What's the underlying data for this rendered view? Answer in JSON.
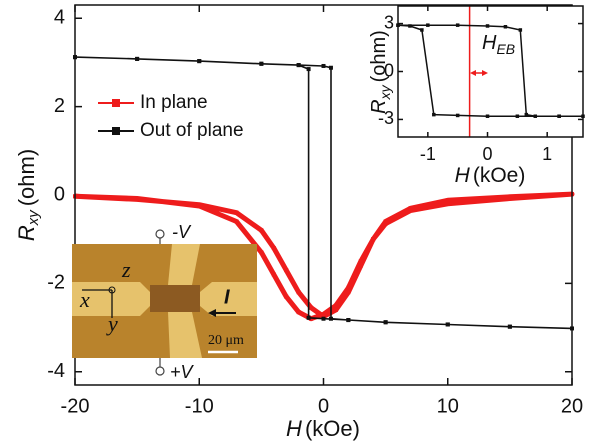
{
  "chart_data": [
    {
      "type": "line",
      "y_label": {
        "symbol": "R",
        "subscript": "xy",
        "unit": "(ohm)"
      },
      "x_label": {
        "symbol": "H",
        "unit": "(kOe)"
      },
      "xlim": [
        -20,
        20
      ],
      "xticks": [
        -20,
        -10,
        0,
        10,
        20
      ],
      "ylim": [
        -4.3,
        4.3
      ],
      "yticks": [
        -4,
        -2,
        0,
        2,
        4
      ],
      "legend": "upper left",
      "series": [
        {
          "name": "In plane",
          "color": "#ee1c1c",
          "marker": "square",
          "x": [
            -20,
            -15,
            -10,
            -7,
            -5,
            -4,
            -3,
            -2,
            -1,
            0,
            1,
            2,
            3,
            4,
            5,
            7,
            10,
            15,
            20,
            15,
            10,
            7,
            5,
            4,
            3,
            2,
            1,
            0,
            -1,
            -2,
            -3,
            -4,
            -5,
            -7,
            -10,
            -15,
            -20
          ],
          "values": [
            -0.03,
            -0.08,
            -0.25,
            -0.6,
            -1.3,
            -1.8,
            -2.3,
            -2.65,
            -2.8,
            -2.7,
            -2.5,
            -2.1,
            -1.5,
            -1.0,
            -0.65,
            -0.35,
            -0.2,
            -0.08,
            0.02,
            -0.04,
            -0.12,
            -0.3,
            -0.6,
            -1.0,
            -1.6,
            -2.2,
            -2.6,
            -2.75,
            -2.55,
            -2.2,
            -1.7,
            -1.2,
            -0.8,
            -0.4,
            -0.22,
            -0.1,
            -0.03
          ]
        },
        {
          "name": "Out of plane",
          "color": "#111111",
          "marker": "square",
          "x": [
            -20,
            -15,
            -10,
            -5,
            -2,
            0,
            0.6,
            0.6,
            2,
            5,
            10,
            15,
            20,
            15,
            10,
            5,
            2,
            0,
            -1.2,
            -1.2,
            -2,
            -5,
            -10,
            -15,
            -20
          ],
          "values": [
            3.12,
            3.08,
            3.03,
            2.97,
            2.94,
            2.92,
            2.88,
            -2.8,
            -2.83,
            -2.88,
            -2.93,
            -2.98,
            -3.02,
            -2.98,
            -2.93,
            -2.88,
            -2.83,
            -2.8,
            -2.78,
            2.85,
            2.94,
            2.97,
            3.03,
            3.08,
            3.12
          ]
        }
      ]
    },
    {
      "type": "line",
      "y_label": {
        "symbol": "R",
        "subscript": "xy",
        "unit": "(ohm)"
      },
      "x_label": {
        "symbol": "H",
        "unit": "(kOe)"
      },
      "xlim": [
        -1.5,
        1.6
      ],
      "xticks": [
        -1,
        0,
        1
      ],
      "ylim": [
        -4.1,
        4.1
      ],
      "yticks": [
        -3,
        0,
        3
      ],
      "vline": -0.3,
      "annotation": {
        "symbol": "H",
        "subscript": "EB"
      },
      "series": [
        {
          "color": "#111111",
          "marker": "square",
          "x": [
            -1.5,
            -1.0,
            -0.5,
            0,
            0.3,
            0.55,
            0.65,
            0.8,
            1.2,
            1.6,
            1.2,
            0.5,
            0,
            -0.5,
            -0.9,
            -1.1,
            -1.3,
            -1.5
          ],
          "values": [
            2.9,
            2.9,
            2.9,
            2.85,
            2.8,
            2.6,
            -2.7,
            -2.8,
            -2.8,
            -2.8,
            -2.8,
            -2.8,
            -2.8,
            -2.75,
            -2.7,
            2.6,
            2.85,
            2.9
          ]
        }
      ]
    }
  ],
  "image_inset": {
    "top_terminal": "-V",
    "bottom_terminal": "+V",
    "axis_z": "z",
    "axis_x": "x",
    "axis_y": "y",
    "current": "I",
    "scale_bar": "20 μm"
  }
}
